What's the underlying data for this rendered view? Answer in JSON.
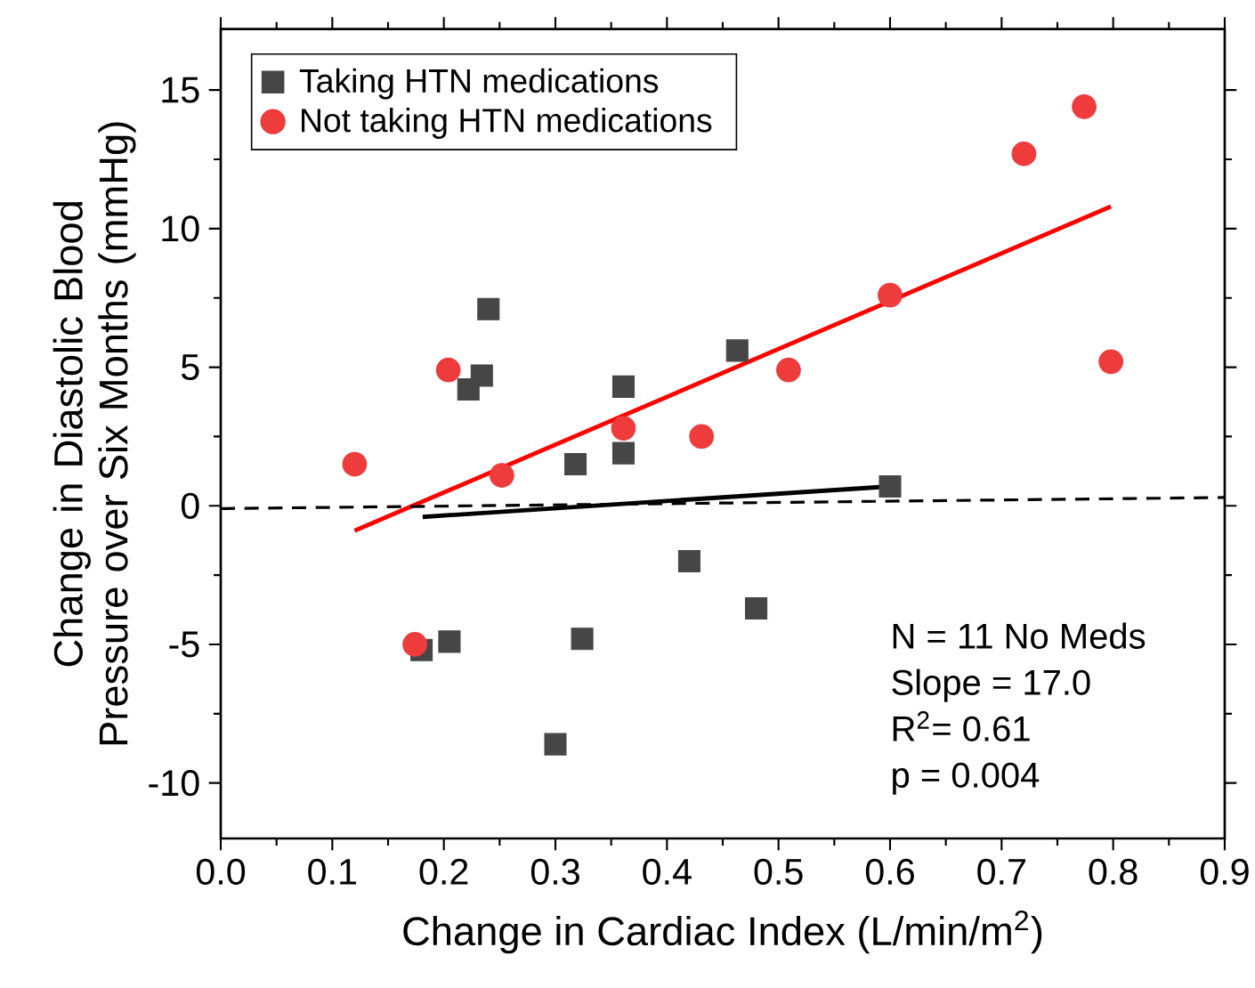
{
  "chart_data": {
    "type": "scatter",
    "xlabel": "Change in Cardiac Index (L/min/m$^{2}$)",
    "ylabel": "Change in Diastolic Blood Pressure over Six Months (mmHg)",
    "xlim": [
      0,
      0.9
    ],
    "ylim": [
      -12,
      17.2
    ],
    "xticks": [
      {
        "value": 0,
        "label": "0.0"
      },
      0.1,
      0.2,
      0.3,
      0.4,
      0.5,
      0.6,
      0.7,
      0.8,
      0.9
    ],
    "yticks": [
      -10,
      -5,
      0,
      5,
      10,
      15
    ],
    "legend": "top left",
    "grid": false,
    "series": [
      {
        "name": "Taking HTN medications",
        "marker": "square",
        "color": "#464646",
        "x": [
          0.24,
          0.234,
          0.222,
          0.361,
          0.361,
          0.318,
          0.463,
          0.6,
          0.42,
          0.48,
          0.324,
          0.205,
          0.18,
          0.3
        ],
        "values": [
          7.1,
          4.7,
          4.2,
          4.3,
          1.9,
          1.5,
          5.6,
          0.7,
          -2.0,
          -3.7,
          -4.8,
          -4.9,
          -5.2,
          -8.6
        ]
      },
      {
        "name": "Not taking HTN medications",
        "marker": "circle",
        "color": "#ee3b3b",
        "x": [
          0.12,
          0.204,
          0.252,
          0.361,
          0.431,
          0.509,
          0.6,
          0.72,
          0.774,
          0.798,
          0.174
        ],
        "values": [
          1.5,
          4.9,
          1.1,
          2.8,
          2.5,
          4.9,
          7.6,
          12.7,
          14.4,
          5.2,
          -5.0
        ]
      },
      {
        "type": "line",
        "marker": "none",
        "color": "#ff0000",
        "x": [
          0.12,
          0.798
        ],
        "values": [
          -0.9,
          10.8
        ]
      },
      {
        "type": "line",
        "marker": "none",
        "color": "#000000",
        "x": [
          0.181,
          0.6
        ],
        "values": [
          -0.4,
          0.7
        ]
      },
      {
        "type": "line",
        "marker": "none",
        "line_style": "dashed",
        "color": "#000000",
        "x": [
          0,
          0.9
        ],
        "values": [
          -0.1,
          0.3
        ]
      }
    ],
    "annotations": [
      "N = 11 No Meds",
      "Slope = 17.0",
      "R$^{2}$= 0.61",
      "p = 0.004"
    ]
  }
}
